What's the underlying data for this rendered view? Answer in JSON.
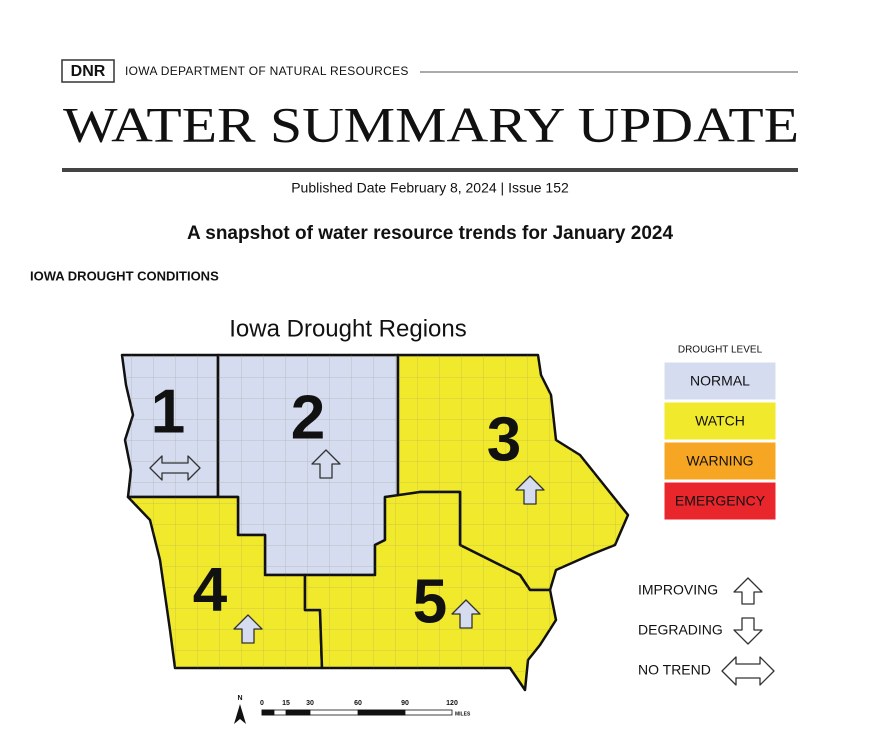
{
  "header": {
    "logo": "DNR",
    "org": "IOWA DEPARTMENT OF NATURAL RESOURCES",
    "title": "WATER SUMMARY UPDATE",
    "published": "Published Date February 8, 2024 | Issue 152",
    "subtitle": "A snapshot of water resource trends for January 2024",
    "section": "IOWA DROUGHT CONDITIONS"
  },
  "map": {
    "title": "Iowa Drought Regions",
    "regions": [
      {
        "label": "1"
      },
      {
        "label": "2"
      },
      {
        "label": "3"
      },
      {
        "label": "4"
      },
      {
        "label": "5"
      }
    ],
    "legend": {
      "title": "DROUGHT LEVEL",
      "levels": [
        {
          "label": "NORMAL",
          "color": "#d5dcef"
        },
        {
          "label": "WATCH",
          "color": "#f1e92b"
        },
        {
          "label": "WARNING",
          "color": "#f6a623"
        },
        {
          "label": "EMERGENCY",
          "color": "#e8262b"
        }
      ]
    },
    "trends": [
      "IMPROVING",
      "DEGRADING",
      "NO TREND"
    ],
    "scale": {
      "north": "N",
      "ticks": [
        "0",
        "15",
        "30",
        "60",
        "90",
        "120"
      ],
      "unit": "MILES"
    }
  }
}
